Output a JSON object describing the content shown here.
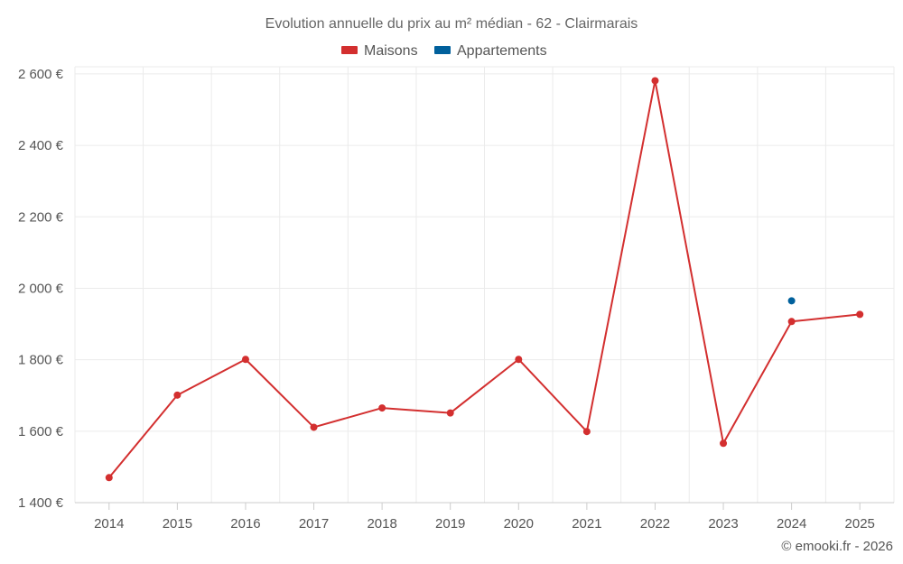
{
  "chart_data": {
    "type": "line",
    "title": "Evolution annuelle du prix au m² médian - 62 - Clairmarais",
    "categories": [
      "2014",
      "2015",
      "2016",
      "2017",
      "2018",
      "2019",
      "2020",
      "2021",
      "2022",
      "2023",
      "2024",
      "2025"
    ],
    "series": [
      {
        "name": "Maisons",
        "color": "#d32f2f",
        "values": [
          1470,
          1701,
          1801,
          1611,
          1665,
          1651,
          1801,
          1599,
          2581,
          1566,
          1907,
          1927
        ]
      },
      {
        "name": "Appartements",
        "color": "#00609c",
        "values": [
          null,
          null,
          null,
          null,
          null,
          null,
          null,
          null,
          null,
          null,
          1965,
          null
        ]
      }
    ],
    "y_ticks": [
      1400,
      1600,
      1800,
      2000,
      2200,
      2400,
      2600
    ],
    "y_tick_labels": [
      "1 400 €",
      "1 600 €",
      "1 800 €",
      "2 000 €",
      "2 200 €",
      "2 400 €",
      "2 600 €"
    ],
    "ylim": [
      1400,
      2620
    ],
    "xlabel": "",
    "ylabel": "",
    "grid": true,
    "legend_position": "top-center"
  },
  "credit": "© emooki.fr - 2026"
}
